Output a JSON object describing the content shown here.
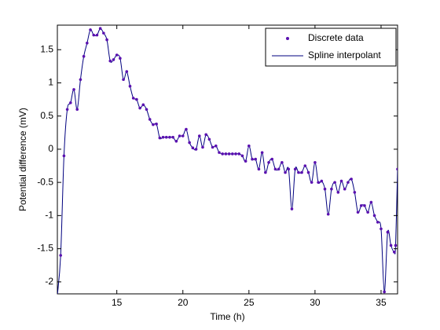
{
  "chart_data": {
    "type": "line",
    "xlabel": "Time (h)",
    "ylabel": "Potential difference (mV)",
    "x": [
      10.5,
      10.75,
      11,
      11.25,
      11.5,
      11.75,
      12,
      12.25,
      12.5,
      12.75,
      13,
      13.25,
      13.5,
      13.75,
      14,
      14.25,
      14.5,
      14.75,
      15,
      15.25,
      15.5,
      15.75,
      16,
      16.25,
      16.5,
      16.75,
      17,
      17.25,
      17.5,
      17.75,
      18,
      18.25,
      18.5,
      18.75,
      19,
      19.25,
      19.5,
      19.75,
      20,
      20.25,
      20.5,
      20.75,
      21,
      21.25,
      21.5,
      21.75,
      22,
      22.25,
      22.5,
      22.75,
      23,
      23.25,
      23.5,
      23.75,
      24,
      24.25,
      24.5,
      24.75,
      25,
      25.25,
      25.5,
      25.75,
      26,
      26.25,
      26.5,
      26.75,
      27,
      27.25,
      27.5,
      27.75,
      28,
      28.25,
      28.5,
      28.75,
      29,
      29.25,
      29.5,
      29.75,
      30,
      30.25,
      30.5,
      30.75,
      31,
      31.25,
      31.5,
      31.75,
      32,
      32.25,
      32.5,
      32.75,
      33,
      33.25,
      33.5,
      33.75,
      34,
      34.25,
      34.5,
      34.75,
      35,
      35.25,
      35.5,
      35.75,
      36,
      36.1,
      36.25
    ],
    "series": [
      {
        "name": "Discrete data",
        "color": "#5a10b0",
        "marker": true,
        "values": [
          -2.2,
          -1.6,
          -0.1,
          0.6,
          0.7,
          0.9,
          0.6,
          1.05,
          1.4,
          1.6,
          1.8,
          1.72,
          1.72,
          1.82,
          1.75,
          1.65,
          1.33,
          1.35,
          1.42,
          1.37,
          1.05,
          1.17,
          0.95,
          0.77,
          0.75,
          0.62,
          0.67,
          0.6,
          0.45,
          0.37,
          0.38,
          0.17,
          0.18,
          0.18,
          0.18,
          0.18,
          0.12,
          0.2,
          0.2,
          0.3,
          0.1,
          0.02,
          0.0,
          0.2,
          0.03,
          0.22,
          0.15,
          0.03,
          0.05,
          -0.05,
          -0.07,
          -0.07,
          -0.07,
          -0.07,
          -0.07,
          -0.07,
          -0.1,
          -0.18,
          0.05,
          -0.15,
          -0.15,
          -0.3,
          -0.05,
          -0.35,
          -0.2,
          -0.15,
          -0.3,
          -0.3,
          -0.2,
          -0.35,
          -0.3,
          -0.9,
          -0.3,
          -0.35,
          -0.35,
          -0.25,
          -0.35,
          -0.5,
          -0.2,
          -0.5,
          -0.48,
          -0.6,
          -0.98,
          -0.6,
          -0.5,
          -0.65,
          -0.48,
          -0.6,
          -0.5,
          -0.45,
          -0.65,
          -0.95,
          -0.85,
          -0.85,
          -0.95,
          -0.8,
          -1.0,
          -1.1,
          -1.2,
          -2.15,
          -1.25,
          -1.45,
          -1.55,
          -1.45,
          -0.3
        ]
      },
      {
        "name": "Spline interpolant",
        "color": "#00007f",
        "interpolate": "spline",
        "of": 0
      }
    ],
    "xlim": [
      10.5,
      36.25
    ],
    "ylim": [
      -2.18,
      1.87
    ],
    "xticks": [
      15,
      20,
      25,
      30,
      35
    ],
    "yticks": [
      -2,
      -1.5,
      -1,
      -0.5,
      0,
      0.5,
      1,
      1.5
    ],
    "grid": false,
    "legend": "northeast"
  }
}
